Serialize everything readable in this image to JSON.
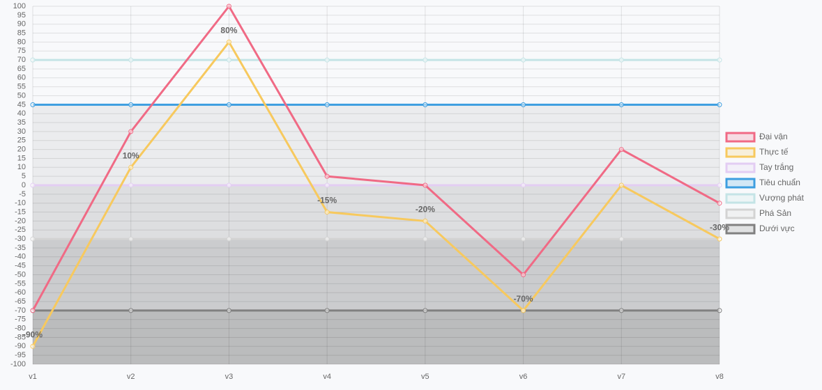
{
  "chart_data": {
    "type": "line",
    "categories": [
      "v1",
      "v2",
      "v3",
      "v4",
      "v5",
      "v6",
      "v7",
      "v8"
    ],
    "ylim": [
      -100,
      100
    ],
    "yticks": [
      100,
      95,
      90,
      85,
      80,
      75,
      70,
      65,
      60,
      55,
      50,
      45,
      40,
      35,
      30,
      25,
      20,
      15,
      10,
      5,
      0,
      -5,
      -10,
      -15,
      -20,
      -25,
      -30,
      -35,
      -40,
      -45,
      -50,
      -55,
      -60,
      -65,
      -70,
      -75,
      -80,
      -85,
      -90,
      -95,
      -100
    ],
    "grid": true,
    "legend": "right",
    "series": [
      {
        "name": "Đại vận",
        "color": "#f06a85",
        "values": [
          -70,
          30,
          100,
          5,
          0,
          -50,
          20,
          -10
        ]
      },
      {
        "name": "Thực tế",
        "color": "#f7c95e",
        "values": [
          -90,
          10,
          80,
          -15,
          -20,
          -70,
          0,
          -30
        ],
        "value_labels": [
          "-90%",
          "10%",
          "80%",
          "-15%",
          "-20%",
          "-70%",
          null,
          "-30%"
        ]
      },
      {
        "name": "Tay trắng",
        "color": "#e3cdf3",
        "values": [
          0,
          0,
          0,
          0,
          0,
          0,
          0,
          0
        ],
        "fill": "rgba(0,0,0,0.06)"
      },
      {
        "name": "Tiêu chuẩn",
        "color": "#3d9ee0",
        "values": [
          45,
          45,
          45,
          45,
          45,
          45,
          45,
          45
        ],
        "fill": "rgba(0,0,0,0.05)"
      },
      {
        "name": "Vượng phát",
        "color": "#c4e4e6",
        "values": [
          70,
          70,
          70,
          70,
          70,
          70,
          70,
          70
        ]
      },
      {
        "name": "Phá Sản",
        "color": "#d3d3d3",
        "values": [
          -30,
          -30,
          -30,
          -30,
          -30,
          -30,
          -30,
          -30
        ],
        "fill": "rgba(0,0,0,0.08)"
      },
      {
        "name": "Dưới vực",
        "color": "#808080",
        "values": [
          -70,
          -70,
          -70,
          -70,
          -70,
          -70,
          -70,
          -70
        ],
        "fill": "rgba(0,0,0,0.08)"
      }
    ]
  }
}
